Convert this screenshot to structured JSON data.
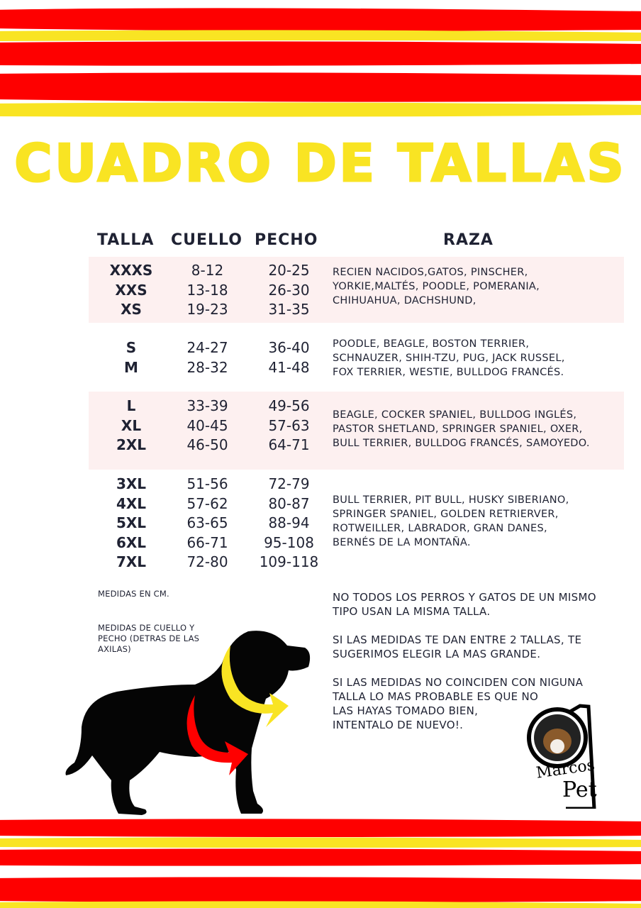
{
  "title": "CUADRO DE TALLAS",
  "colors": {
    "red": "#fe0000",
    "yellow": "#f9e423",
    "band": "#fdf0f0",
    "text": "#1f2233"
  },
  "table": {
    "headers": {
      "talla": "TALLA",
      "cuello": "CUELLO",
      "pecho": "PECHO",
      "raza": "RAZA"
    },
    "groups": [
      {
        "tallas": "XXXS\nXXS\nXS",
        "cuello": "8-12\n13-18\n19-23",
        "pecho": "20-25\n26-30\n31-35",
        "raza": "RECIEN NACIDOS,GATOS, PINSCHER,\nYORKIE,MALTÉS, POODLE, POMERANIA,\nCHIHUAHUA, DACHSHUND,"
      },
      {
        "tallas": "S\nM",
        "cuello": "24-27\n28-32",
        "pecho": "36-40\n41-48",
        "raza": "POODLE, BEAGLE, BOSTON TERRIER,\nSCHNAUZER, SHIH-TZU, PUG, JACK RUSSEL,\nFOX TERRIER, WESTIE, BULLDOG FRANCÉS."
      },
      {
        "tallas": "L\nXL\n2XL",
        "cuello": "33-39\n40-45\n46-50",
        "pecho": "49-56\n57-63\n64-71",
        "raza": "BEAGLE, COCKER SPANIEL, BULLDOG INGLÉS,\nPASTOR SHETLAND, SPRINGER SPANIEL, OXER,\nBULL TERRIER, BULLDOG FRANCÉS, SAMOYEDO."
      },
      {
        "tallas": "3XL\n4XL\n5XL\n6XL\n7XL",
        "cuello": "51-56\n57-62\n63-65\n66-71\n72-80",
        "pecho": "72-79\n80-87\n88-94\n95-108\n109-118",
        "raza": "BULL TERRIER, PIT BULL, HUSKY SIBERIANO,\nSPRINGER SPANIEL, GOLDEN RETRIERVER,\nROTWEILLER, LABRADOR, GRAN DANES,\nBERNÉS DE LA MONTAÑA."
      }
    ]
  },
  "notes_left": [
    "MEDIDAS EN CM.",
    "MEDIDAS DE CUELLO Y\nPECHO (DETRAS DE LAS\nAXILAS)"
  ],
  "notes_right": [
    "NO TODOS LOS PERROS Y GATOS DE UN MISMO\nTIPO USAN LA MISMA TALLA.",
    "SI LAS MEDIDAS TE DAN ENTRE 2 TALLAS, TE\nSUGERIMOS ELEGIR LA MAS GRANDE.",
    "SI LAS MEDIDAS NO COINCIDEN CON NIGUNA\nTALLA LO MAS PROBABLE ES QUE NO\nLAS HAYAS TOMADO BIEN,\nINTENTALO DE NUEVO!."
  ],
  "logo": {
    "line1": "Marcos",
    "line2": "Pet"
  },
  "icons": {
    "dog": "dog-silhouette-icon",
    "neck_arrow": "curved-arrow-icon",
    "chest_arrow": "curved-arrow-icon"
  }
}
